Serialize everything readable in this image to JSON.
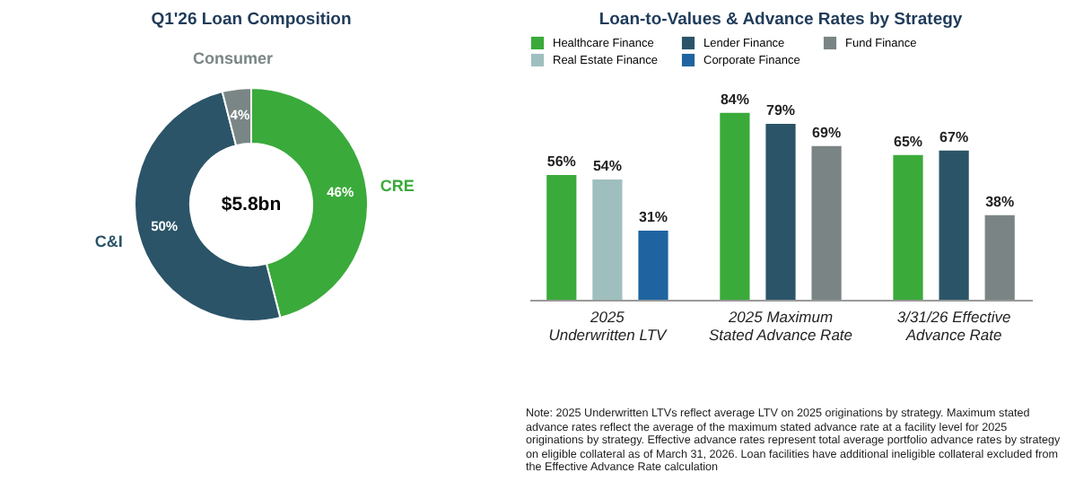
{
  "chart_data": [
    {
      "type": "donut",
      "title": "Q1'26 Loan Composition",
      "categories": [
        "CRE",
        "C&I",
        "Consumer"
      ],
      "values": [
        46,
        50,
        4
      ],
      "value_labels": [
        "46%",
        "50%",
        "4%"
      ],
      "colors": [
        "#3aaa3a",
        "#2b5468",
        "#7a8686"
      ],
      "annotations": [
        "$5.8bn"
      ],
      "legend": false
    },
    {
      "type": "bar",
      "title": "Loan-to-Values & Advance Rates by Strategy",
      "categories": [
        "2025\nUnderwritten LTV",
        "2025 Maximum\nStated Advance Rate",
        "3/31/26 Effective\nAdvance Rate"
      ],
      "legend": "top",
      "series": [
        {
          "name": "Healthcare Finance",
          "color": "#3aaa3a",
          "values": [
            56,
            84,
            65
          ],
          "value_labels": [
            "56%",
            "84%",
            "65%"
          ]
        },
        {
          "name": "Lender Finance",
          "color": "#2b5468",
          "values": [
            null,
            79,
            67
          ],
          "value_labels": [
            null,
            "79%",
            "67%"
          ]
        },
        {
          "name": "Fund Finance",
          "color": "#7a8484",
          "values": [
            null,
            69,
            38
          ],
          "value_labels": [
            null,
            "69%",
            "38%"
          ]
        },
        {
          "name": "Real Estate Finance",
          "color": "#9fbfbf",
          "values": [
            54,
            null,
            null
          ],
          "value_labels": [
            "54%",
            null,
            null
          ]
        },
        {
          "name": "Corporate Finance",
          "color": "#1f64a0",
          "values": [
            31,
            null,
            null
          ],
          "value_labels": [
            "31%",
            null,
            null
          ]
        }
      ],
      "annotations": [
        "Note: 2025 Underwritten LTVs reflect average LTV on 2025 originations by strategy. Maximum stated advance rates reflect the average of the maximum stated advance rate at a facility level for 2025 originations by strategy. Effective advance rates represent total average portfolio advance rates by strategy on eligible collateral as of March 31, 2026. Loan facilities have additional ineligible collateral excluded from the Effective Advance Rate calculation"
      ]
    }
  ]
}
